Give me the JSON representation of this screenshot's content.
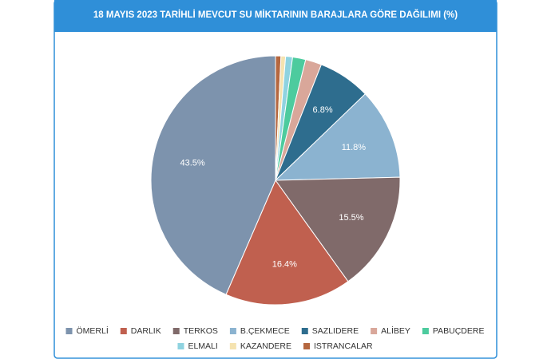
{
  "chart_data": {
    "type": "pie",
    "title": "18 MAYIS 2023 TARİHLİ MEVCUT SU MİKTARININ BARAJLARA GÖRE DAĞILIMI (%)",
    "categories": [
      "ÖMERLİ",
      "DARLIK",
      "TERKOS",
      "B.ÇEKMECE",
      "SAZLIDERE",
      "ALİBEY",
      "PABUÇDERE",
      "ELMALI",
      "KAZANDERE",
      "ISTRANCALAR"
    ],
    "values": [
      43.5,
      16.4,
      15.5,
      11.8,
      6.8,
      2.1,
      1.7,
      0.9,
      0.6,
      0.7
    ],
    "value_labels": [
      "43.5%",
      "16.4%",
      "15.5%",
      "11.8%",
      "6.8%",
      null,
      null,
      null,
      null,
      null
    ],
    "colors": [
      "#7d93ad",
      "#c0604f",
      "#806a6a",
      "#8bb3d0",
      "#2e6d8e",
      "#d9a79a",
      "#4dcb9e",
      "#8fd3e0",
      "#f5e3b0",
      "#b5673f"
    ],
    "legend": "bottom"
  }
}
